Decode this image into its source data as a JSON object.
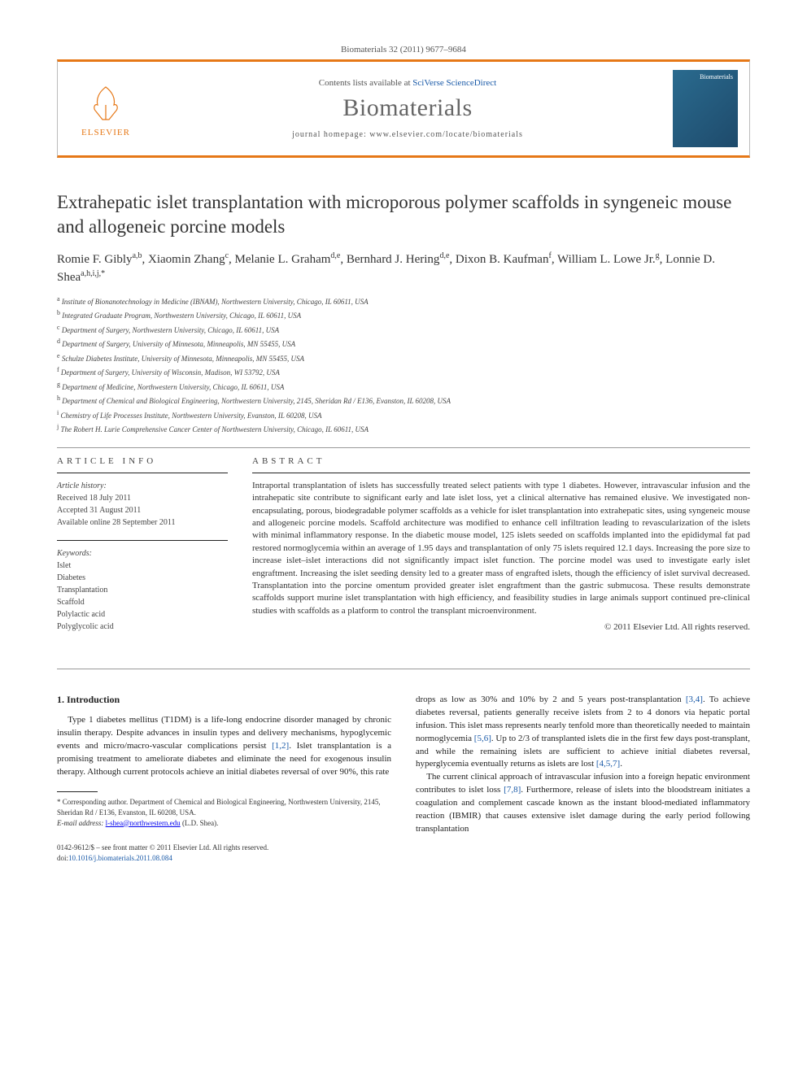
{
  "journal_ref": "Biomaterials 32 (2011) 9677–9684",
  "header": {
    "publisher": "ELSEVIER",
    "contents_prefix": "Contents lists available at ",
    "contents_link": "SciVerse ScienceDirect",
    "journal_title": "Biomaterials",
    "homepage_prefix": "journal homepage: ",
    "homepage_url": "www.elsevier.com/locate/biomaterials",
    "cover_label": "Biomaterials"
  },
  "title": "Extrahepatic islet transplantation with microporous polymer scaffolds in syngeneic mouse and allogeneic porcine models",
  "authors_html": "Romie F. Gibly<sup>a,b</sup>, Xiaomin Zhang<sup>c</sup>, Melanie L. Graham<sup>d,e</sup>, Bernhard J. Hering<sup>d,e</sup>, Dixon B. Kaufman<sup>f</sup>, William L. Lowe Jr.<sup>g</sup>, Lonnie D. Shea<sup>a,h,i,j,*</sup>",
  "affiliations": [
    {
      "key": "a",
      "text": "Institute of Bionanotechnology in Medicine (IBNAM), Northwestern University, Chicago, IL 60611, USA"
    },
    {
      "key": "b",
      "text": "Integrated Graduate Program, Northwestern University, Chicago, IL 60611, USA"
    },
    {
      "key": "c",
      "text": "Department of Surgery, Northwestern University, Chicago, IL 60611, USA"
    },
    {
      "key": "d",
      "text": "Department of Surgery, University of Minnesota, Minneapolis, MN 55455, USA"
    },
    {
      "key": "e",
      "text": "Schulze Diabetes Institute, University of Minnesota, Minneapolis, MN 55455, USA"
    },
    {
      "key": "f",
      "text": "Department of Surgery, University of Wisconsin, Madison, WI 53792, USA"
    },
    {
      "key": "g",
      "text": "Department of Medicine, Northwestern University, Chicago, IL 60611, USA"
    },
    {
      "key": "h",
      "text": "Department of Chemical and Biological Engineering, Northwestern University, 2145, Sheridan Rd / E136, Evanston, IL 60208, USA"
    },
    {
      "key": "i",
      "text": "Chemistry of Life Processes Institute, Northwestern University, Evanston, IL 60208, USA"
    },
    {
      "key": "j",
      "text": "The Robert H. Lurie Comprehensive Cancer Center of Northwestern University, Chicago, IL 60611, USA"
    }
  ],
  "article_info_label": "ARTICLE INFO",
  "abstract_label": "ABSTRACT",
  "history": {
    "heading": "Article history:",
    "received": "Received 18 July 2011",
    "accepted": "Accepted 31 August 2011",
    "online": "Available online 28 September 2011"
  },
  "keywords": {
    "heading": "Keywords:",
    "items": [
      "Islet",
      "Diabetes",
      "Transplantation",
      "Scaffold",
      "Polylactic acid",
      "Polyglycolic acid"
    ]
  },
  "abstract": "Intraportal transplantation of islets has successfully treated select patients with type 1 diabetes. However, intravascular infusion and the intrahepatic site contribute to significant early and late islet loss, yet a clinical alternative has remained elusive. We investigated non-encapsulating, porous, biodegradable polymer scaffolds as a vehicle for islet transplantation into extrahepatic sites, using syngeneic mouse and allogeneic porcine models. Scaffold architecture was modified to enhance cell infiltration leading to revascularization of the islets with minimal inflammatory response. In the diabetic mouse model, 125 islets seeded on scaffolds implanted into the epididymal fat pad restored normoglycemia within an average of 1.95 days and transplantation of only 75 islets required 12.1 days. Increasing the pore size to increase islet–islet interactions did not significantly impact islet function. The porcine model was used to investigate early islet engraftment. Increasing the islet seeding density led to a greater mass of engrafted islets, though the efficiency of islet survival decreased. Transplantation into the porcine omentum provided greater islet engraftment than the gastric submucosa. These results demonstrate scaffolds support murine islet transplantation with high efficiency, and feasibility studies in large animals support continued pre-clinical studies with scaffolds as a platform to control the transplant microenvironment.",
  "copyright": "© 2011 Elsevier Ltd. All rights reserved.",
  "intro_heading": "1. Introduction",
  "col1_p1": "Type 1 diabetes mellitus (T1DM) is a life-long endocrine disorder managed by chronic insulin therapy. Despite advances in insulin types and delivery mechanisms, hypoglycemic events and micro/macro-vascular complications persist [1,2]. Islet transplantation is a promising treatment to ameliorate diabetes and eliminate the need for exogenous insulin therapy. Although current protocols achieve an initial diabetes reversal of over 90%, this rate",
  "col2_p1": "drops as low as 30% and 10% by 2 and 5 years post-transplantation [3,4]. To achieve diabetes reversal, patients generally receive islets from 2 to 4 donors via hepatic portal infusion. This islet mass represents nearly tenfold more than theoretically needed to maintain normoglycemia [5,6]. Up to 2/3 of transplanted islets die in the first few days post-transplant, and while the remaining islets are sufficient to achieve initial diabetes reversal, hyperglycemia eventually returns as islets are lost [4,5,7].",
  "col2_p2": "The current clinical approach of intravascular infusion into a foreign hepatic environment contributes to islet loss [7,8]. Furthermore, release of islets into the bloodstream initiates a coagulation and complement cascade known as the instant blood-mediated inflammatory reaction (IBMIR) that causes extensive islet damage during the early period following transplantation",
  "corresponding": "* Corresponding author. Department of Chemical and Biological Engineering, Northwestern University, 2145, Sheridan Rd / E136, Evanston, IL 60208, USA.",
  "email_label": "E-mail address: ",
  "email": "l-shea@northwestern.edu",
  "email_suffix": " (L.D. Shea).",
  "footer_line1": "0142-9612/$ – see front matter © 2011 Elsevier Ltd. All rights reserved.",
  "footer_doi_prefix": "doi:",
  "footer_doi": "10.1016/j.biomaterials.2011.08.084",
  "refs": {
    "r12": "[1,2]",
    "r34": "[3,4]",
    "r56": "[5,6]",
    "r457": "[4,5,7]",
    "r78": "[7,8]"
  },
  "colors": {
    "accent": "#e67817",
    "link": "#1a5aa8"
  }
}
